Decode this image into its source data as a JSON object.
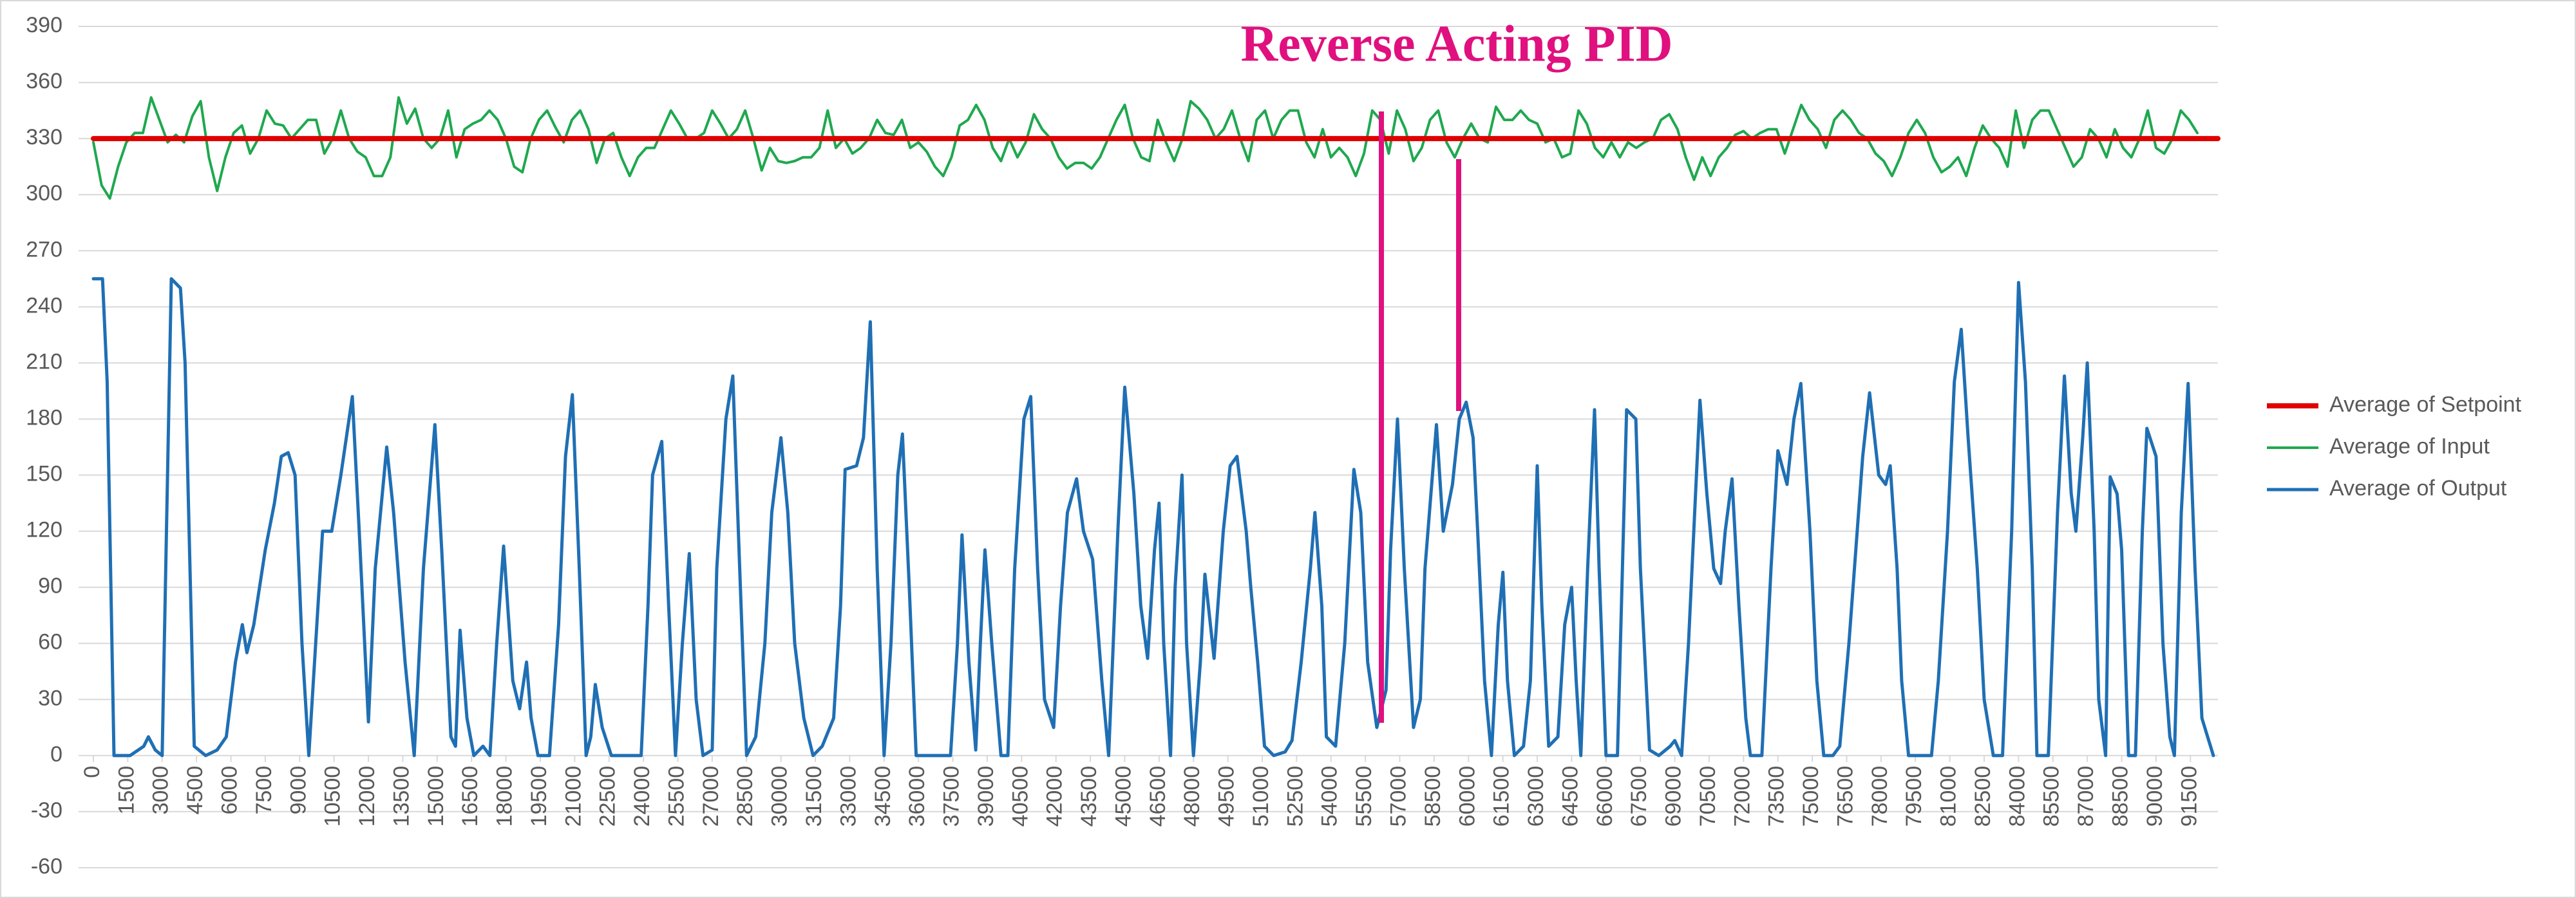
{
  "chart_data": {
    "type": "line",
    "title": "Reverse Acting PID",
    "title_color": "#e0107f",
    "grid": true,
    "legend": "right",
    "xlim": [
      0,
      92700
    ],
    "xticks": [
      0,
      1500,
      3000,
      4500,
      6000,
      7500,
      9000,
      10500,
      12000,
      13500,
      15000,
      16500,
      18000,
      19500,
      21000,
      22500,
      24000,
      25500,
      27000,
      28500,
      30000,
      31500,
      33000,
      34500,
      36000,
      37500,
      39000,
      40500,
      42000,
      43500,
      45000,
      46500,
      48000,
      49500,
      51000,
      52500,
      54000,
      55500,
      57000,
      58500,
      60000,
      61500,
      63000,
      64500,
      66000,
      67500,
      69000,
      70500,
      72000,
      73500,
      75000,
      76500,
      78000,
      79500,
      81000,
      82500,
      84000,
      85500,
      87000,
      88500,
      90000,
      91500
    ],
    "ylim": [
      -60,
      390
    ],
    "yticks": [
      -60,
      -30,
      0,
      30,
      60,
      90,
      120,
      150,
      180,
      210,
      240,
      270,
      300,
      330,
      360,
      390
    ],
    "series": [
      {
        "name": "Average of Setpoint",
        "color": "#e00000",
        "x": [
          0,
          92700
        ],
        "values": [
          330,
          330
        ]
      },
      {
        "name": "Average of Input",
        "color": "#1fa84f",
        "x": [
          0,
          360,
          720,
          1080,
          1440,
          1800,
          2160,
          2520,
          2880,
          3240,
          3600,
          3960,
          4320,
          4680,
          5040,
          5400,
          5760,
          6120,
          6480,
          6840,
          7200,
          7560,
          7920,
          8280,
          8640,
          9000,
          9360,
          9720,
          10080,
          10440,
          10800,
          11160,
          11520,
          11880,
          12240,
          12600,
          12960,
          13320,
          13680,
          14040,
          14400,
          14760,
          15120,
          15480,
          15840,
          16200,
          16560,
          16920,
          17280,
          17640,
          18000,
          18360,
          18720,
          19080,
          19440,
          19800,
          20160,
          20520,
          20880,
          21240,
          21600,
          21960,
          22320,
          22680,
          23040,
          23400,
          23760,
          24120,
          24480,
          24840,
          25200,
          25560,
          25920,
          26280,
          26640,
          27000,
          27360,
          27720,
          28080,
          28440,
          28800,
          29160,
          29520,
          29880,
          30240,
          30600,
          30960,
          31320,
          31680,
          32040,
          32400,
          32760,
          33120,
          33480,
          33840,
          34200,
          34560,
          34920,
          35280,
          35640,
          36000,
          36360,
          36720,
          37080,
          37440,
          37800,
          38160,
          38520,
          38880,
          39240,
          39600,
          39960,
          40320,
          40680,
          41040,
          41400,
          41760,
          42120,
          42480,
          42840,
          43200,
          43560,
          43920,
          44280,
          44640,
          45000,
          45360,
          45720,
          46080,
          46440,
          46800,
          47160,
          47520,
          47880,
          48240,
          48600,
          48960,
          49320,
          49680,
          50040,
          50400,
          50760,
          51120,
          51480,
          51840,
          52200,
          52560,
          52920,
          53280,
          53640,
          54000,
          54360,
          54720,
          55080,
          55440,
          55800,
          56160,
          56520,
          56880,
          57240,
          57600,
          57960,
          58320,
          58680,
          59040,
          59400,
          59760,
          60120,
          60480,
          60840,
          61200,
          61560,
          61920,
          62280,
          62640,
          63000,
          63360,
          63720,
          64080,
          64440,
          64800,
          65160,
          65520,
          65880,
          66240,
          66600,
          66960,
          67320,
          67680,
          68040,
          68400,
          68760,
          69120,
          69480,
          69840,
          70200,
          70560,
          70920,
          71280,
          71640,
          72000,
          72360,
          72720,
          73080,
          73440,
          73800,
          74160,
          74520,
          74880,
          75240,
          75600,
          75960,
          76320,
          76680,
          77040,
          77400,
          77760,
          78120,
          78480,
          78840,
          79200,
          79560,
          79920,
          80280,
          80640,
          81000,
          81360,
          81720,
          82080,
          82440,
          82800,
          83160,
          83520,
          83880,
          84240,
          84600,
          84960,
          85320,
          85680,
          86040,
          86400,
          86760,
          87120,
          87480,
          87840,
          88200,
          88560,
          88920,
          89280,
          89640,
          90000,
          90360,
          90720,
          91080,
          91440,
          91800
        ],
        "values": [
          328,
          305,
          298,
          315,
          328,
          333,
          333,
          352,
          340,
          328,
          332,
          328,
          342,
          350,
          320,
          302,
          320,
          333,
          337,
          322,
          330,
          345,
          338,
          337,
          330,
          335,
          340,
          340,
          322,
          330,
          345,
          330,
          323,
          320,
          310,
          310,
          320,
          352,
          338,
          346,
          330,
          325,
          330,
          345,
          320,
          335,
          338,
          340,
          345,
          340,
          330,
          315,
          312,
          330,
          340,
          345,
          336,
          328,
          340,
          345,
          335,
          317,
          330,
          333,
          320,
          310,
          320,
          325,
          325,
          335,
          345,
          338,
          330,
          330,
          333,
          345,
          338,
          330,
          335,
          345,
          330,
          313,
          325,
          318,
          317,
          318,
          320,
          320,
          325,
          345,
          325,
          330,
          322,
          325,
          330,
          340,
          333,
          332,
          340,
          325,
          328,
          323,
          315,
          310,
          320,
          337,
          340,
          348,
          340,
          325,
          318,
          330,
          320,
          328,
          343,
          335,
          330,
          320,
          314,
          317,
          317,
          314,
          320,
          330,
          340,
          348,
          330,
          320,
          318,
          340,
          328,
          318,
          330,
          350,
          346,
          340,
          330,
          335,
          345,
          330,
          318,
          340,
          345,
          330,
          340,
          345,
          345,
          328,
          320,
          335,
          320,
          325,
          320,
          310,
          322,
          345,
          340,
          322,
          345,
          335,
          318,
          325,
          340,
          345,
          328,
          320,
          330,
          338,
          330,
          328,
          347,
          340,
          340,
          345,
          340,
          338,
          328,
          330,
          320,
          322,
          345,
          338,
          325,
          320,
          328,
          320,
          328,
          325,
          328,
          330,
          340,
          343,
          335,
          320,
          308,
          320,
          310,
          320,
          325,
          332,
          334,
          330,
          333,
          335,
          335,
          322,
          335,
          348,
          340,
          335,
          325,
          340,
          345,
          340,
          333,
          330,
          322,
          318,
          310,
          320,
          333,
          340,
          333,
          320,
          312,
          315,
          320,
          310,
          325,
          337,
          330,
          325,
          315,
          345,
          325,
          340,
          345,
          345,
          335,
          325,
          315,
          320,
          335,
          330,
          320,
          335,
          325,
          320,
          330,
          345,
          325,
          322,
          330,
          345,
          340,
          333
        ]
      },
      {
        "name": "Average of Output",
        "color": "#1f6fb4",
        "x": [
          0,
          400,
          600,
          900,
          1600,
          2200,
          2400,
          2700,
          3000,
          3400,
          3800,
          4000,
          4400,
          4900,
          5400,
          5800,
          6200,
          6500,
          6700,
          7000,
          7500,
          7900,
          8200,
          8500,
          8800,
          9100,
          9400,
          9700,
          10000,
          10400,
          10800,
          11300,
          11600,
          12000,
          12300,
          12800,
          13100,
          13600,
          14000,
          14400,
          14900,
          15200,
          15600,
          15800,
          16000,
          16300,
          16600,
          17000,
          17300,
          17600,
          17900,
          18300,
          18600,
          18900,
          19100,
          19400,
          19900,
          20300,
          20600,
          20900,
          21200,
          21500,
          21700,
          21900,
          22200,
          22600,
          23200,
          23900,
          24200,
          24400,
          24800,
          25100,
          25400,
          25700,
          26000,
          26300,
          26600,
          27000,
          27200,
          27600,
          27900,
          28200,
          28500,
          28900,
          29300,
          29600,
          30000,
          30300,
          30600,
          31000,
          31400,
          31800,
          32300,
          32600,
          32800,
          33300,
          33600,
          33900,
          34200,
          34500,
          34800,
          35100,
          35300,
          35600,
          35900,
          36300,
          36800,
          37400,
          37700,
          37900,
          38200,
          38500,
          38700,
          38900,
          39200,
          39600,
          39900,
          40200,
          40600,
          40900,
          41200,
          41500,
          41900,
          42200,
          42500,
          42900,
          43200,
          43600,
          44000,
          44300,
          44700,
          45000,
          45400,
          45700,
          46000,
          46300,
          46500,
          46700,
          47000,
          47200,
          47500,
          47700,
          48000,
          48300,
          48500,
          48900,
          49300,
          49600,
          49900,
          50300,
          50500,
          50800,
          51100,
          51500,
          52000,
          52300,
          52700,
          53100,
          53300,
          53600,
          53800,
          54200,
          54600,
          55000,
          55300,
          55600,
          56000,
          56400,
          56600,
          56900,
          57200,
          57600,
          57900,
          58100,
          58600,
          58900,
          59300,
          59600,
          59900,
          60200,
          60400,
          60700,
          61000,
          61300,
          61500,
          61700,
          62000,
          62400,
          62700,
          63000,
          63200,
          63500,
          63900,
          64200,
          64500,
          64700,
          64900,
          65200,
          65500,
          65700,
          66000,
          66500,
          66900,
          67300,
          67500,
          67900,
          68300,
          68800,
          69000,
          69300,
          69600,
          70100,
          70400,
          70700,
          71000,
          71200,
          71500,
          71800,
          72100,
          72300,
          72800,
          73200,
          73500,
          73900,
          74200,
          74500,
          74900,
          75200,
          75500,
          75900,
          76200,
          76600,
          77200,
          77500,
          77900,
          78200,
          78400,
          78700,
          78900,
          79200,
          79700,
          80200,
          80500,
          80900,
          81200,
          81500,
          81800,
          82200,
          82500,
          82900,
          83300,
          83700,
          84000,
          84300,
          84600,
          84800,
          85300,
          85700,
          86000,
          86300,
          86500,
          86800,
          87000,
          87300,
          87500,
          87800,
          88000,
          88300,
          88500,
          88800,
          89100,
          89400,
          89600,
          90000,
          90300,
          90600,
          90800,
          91100,
          91400,
          91700,
          92000,
          92500
        ],
        "values": [
          255,
          255,
          200,
          0,
          0,
          5,
          10,
          3,
          0,
          255,
          250,
          210,
          5,
          0,
          3,
          10,
          50,
          70,
          55,
          70,
          110,
          135,
          160,
          162,
          150,
          60,
          0,
          60,
          120,
          120,
          150,
          192,
          120,
          18,
          100,
          165,
          130,
          50,
          0,
          100,
          177,
          110,
          10,
          5,
          67,
          20,
          0,
          5,
          0,
          60,
          112,
          40,
          25,
          50,
          20,
          0,
          0,
          70,
          160,
          193,
          100,
          0,
          10,
          38,
          15,
          0,
          0,
          0,
          80,
          150,
          168,
          80,
          0,
          60,
          108,
          30,
          0,
          3,
          100,
          180,
          203,
          100,
          0,
          10,
          60,
          130,
          170,
          130,
          60,
          20,
          0,
          5,
          20,
          80,
          153,
          155,
          170,
          232,
          100,
          0,
          60,
          150,
          172,
          90,
          0,
          0,
          0,
          0,
          60,
          118,
          50,
          3,
          60,
          110,
          60,
          0,
          0,
          100,
          180,
          192,
          100,
          30,
          15,
          80,
          130,
          148,
          120,
          105,
          40,
          0,
          120,
          197,
          140,
          80,
          52,
          110,
          135,
          60,
          0,
          90,
          150,
          60,
          0,
          50,
          97,
          52,
          120,
          155,
          160,
          120,
          90,
          50,
          5,
          0,
          2,
          8,
          50,
          100,
          130,
          80,
          10,
          5,
          60,
          153,
          130,
          50,
          15,
          35,
          110,
          180,
          100,
          15,
          30,
          100,
          177,
          120,
          145,
          180,
          189,
          170,
          120,
          40,
          0,
          70,
          98,
          40,
          0,
          5,
          40,
          155,
          80,
          5,
          10,
          70,
          90,
          40,
          0,
          100,
          185,
          100,
          0,
          0,
          185,
          180,
          100,
          3,
          0,
          5,
          8,
          0,
          60,
          190,
          140,
          100,
          92,
          120,
          148,
          80,
          20,
          0,
          0,
          100,
          163,
          145,
          180,
          199,
          120,
          40,
          0,
          0,
          5,
          60,
          160,
          194,
          150,
          145,
          155,
          100,
          40,
          0,
          0,
          0,
          40,
          120,
          200,
          228,
          170,
          100,
          30,
          0,
          0,
          120,
          253,
          200,
          100,
          0,
          0,
          130,
          203,
          140,
          120,
          170,
          210,
          120,
          30,
          0,
          149,
          140,
          110,
          0,
          0,
          120,
          175,
          160,
          60,
          10,
          0,
          130,
          199,
          100,
          20,
          0
        ]
      }
    ]
  }
}
